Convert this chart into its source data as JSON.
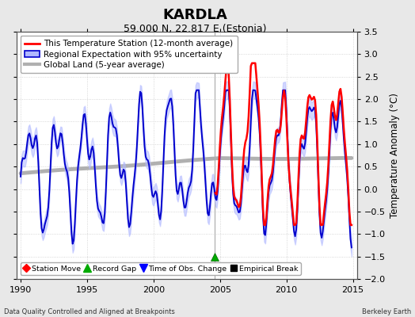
{
  "title": "KARDLA",
  "subtitle": "59.000 N, 22.817 E (Estonia)",
  "ylabel": "Temperature Anomaly (°C)",
  "xlabel_left": "Data Quality Controlled and Aligned at Breakpoints",
  "xlabel_right": "Berkeley Earth",
  "ylim": [
    -2.0,
    3.5
  ],
  "xlim": [
    1989.7,
    2015.3
  ],
  "yticks": [
    -2,
    -1.5,
    -1,
    -0.5,
    0,
    0.5,
    1,
    1.5,
    2,
    2.5,
    3,
    3.5
  ],
  "xticks": [
    1990,
    1995,
    2000,
    2005,
    2010,
    2015
  ],
  "vline_x": 2004.58,
  "record_gap_x": 2004.58,
  "record_gap_y": -1.5,
  "bg_color": "#e8e8e8",
  "plot_bg_color": "#ffffff",
  "grid_color": "#cccccc",
  "station_color": "#ff0000",
  "regional_color": "#0000cc",
  "regional_fill_color": "#b0b8ff",
  "global_color": "#b0b0b0",
  "global_lw": 3.5,
  "legend_fontsize": 7.5,
  "title_fontsize": 13,
  "subtitle_fontsize": 9,
  "tick_fontsize": 8
}
